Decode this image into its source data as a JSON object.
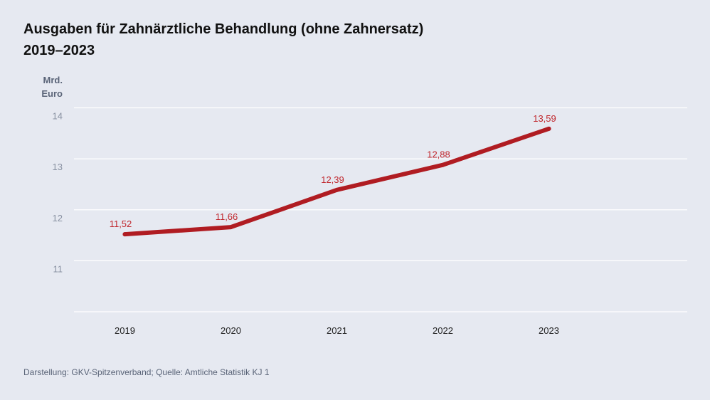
{
  "title": {
    "line1": "Ausgaben für Zahnärztliche Behandlung (ohne Zahnersatz)",
    "line2": "2019–2023"
  },
  "unit": {
    "line1": "Mrd.",
    "line2": "Euro"
  },
  "footer": "Darstellung: GKV-Spitzenverband; Quelle: Amtliche Statistik KJ 1",
  "colors": {
    "line": "#b01c22",
    "label": "#c0272d",
    "grid": "#ffffff",
    "tick": "#8a92a3",
    "xtick": "#222222"
  },
  "chart_data": {
    "type": "line",
    "title": "Ausgaben für Zahnärztliche Behandlung (ohne Zahnersatz) 2019–2023",
    "xlabel": "",
    "ylabel": "Mrd. Euro",
    "categories": [
      "2019",
      "2020",
      "2021",
      "2022",
      "2023"
    ],
    "values": [
      11.52,
      11.66,
      12.39,
      12.88,
      13.59
    ],
    "data_labels": [
      "11,52",
      "11,66",
      "12,39",
      "12,88",
      "13,59"
    ],
    "y_ticks": [
      11,
      12,
      13,
      14
    ],
    "ylim": [
      10,
      14
    ],
    "grid": true
  }
}
